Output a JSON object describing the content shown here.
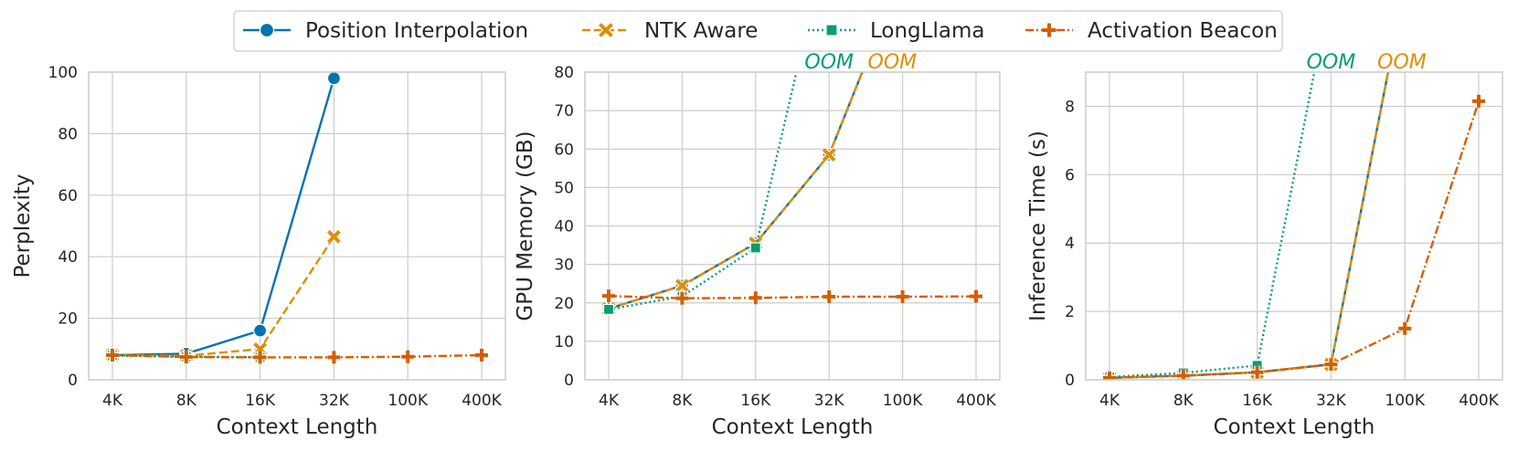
{
  "chart_data": [
    {
      "type": "line",
      "xlabel": "Context Length",
      "ylabel": "Perplexity",
      "categories": [
        "4K",
        "8K",
        "16K",
        "32K",
        "100K",
        "400K"
      ],
      "ylim": [
        0,
        100
      ],
      "yticks": [
        0,
        20,
        40,
        60,
        80,
        100
      ],
      "series": [
        {
          "name": "Position Interpolation",
          "values": [
            8.0,
            8.5,
            16.0,
            98.0,
            null,
            null
          ]
        },
        {
          "name": "NTK Aware",
          "values": [
            8.0,
            7.8,
            10.0,
            46.5,
            null,
            null
          ]
        },
        {
          "name": "LongLlama",
          "values": [
            7.9,
            7.5,
            7.3,
            null,
            null,
            null
          ]
        },
        {
          "name": "Activation Beacon",
          "values": [
            8.0,
            7.4,
            7.3,
            7.3,
            7.5,
            8.0
          ]
        }
      ]
    },
    {
      "type": "line",
      "xlabel": "Context Length",
      "ylabel": "GPU Memory (GB)",
      "categories": [
        "4K",
        "8K",
        "16K",
        "32K",
        "100K",
        "400K"
      ],
      "ylim": [
        0,
        80
      ],
      "yticks": [
        0,
        10,
        20,
        30,
        40,
        50,
        60,
        70,
        80
      ],
      "series": [
        {
          "name": "Position Interpolation",
          "values": [
            18.5,
            24.5,
            35.5,
            58.5,
            null,
            null
          ],
          "overflow_to": 3.65
        },
        {
          "name": "NTK Aware",
          "values": [
            18.5,
            24.5,
            35.5,
            58.5,
            null,
            null
          ],
          "overflow_to": 3.65
        },
        {
          "name": "LongLlama",
          "values": [
            18.3,
            21.7,
            34.3,
            null,
            null,
            null
          ],
          "overflow_to": 2.67
        },
        {
          "name": "Activation Beacon",
          "values": [
            21.8,
            21.2,
            21.3,
            21.6,
            21.6,
            21.7
          ]
        }
      ],
      "annotations": [
        {
          "text": "OOM",
          "series": "LongLlama",
          "x": 3.0
        },
        {
          "text": "OOM",
          "series": "NTK Aware",
          "x": 3.86
        }
      ]
    },
    {
      "type": "line",
      "xlabel": "Context Length",
      "ylabel": "Inference Time (s)",
      "categories": [
        "4K",
        "8K",
        "16K",
        "32K",
        "100K",
        "400K"
      ],
      "ylim": [
        0,
        9
      ],
      "yticks": [
        0,
        2,
        4,
        6,
        8
      ],
      "series": [
        {
          "name": "Position Interpolation",
          "values": [
            0.06,
            0.12,
            0.22,
            0.45,
            null,
            null
          ],
          "overflow_to": 3.87
        },
        {
          "name": "NTK Aware",
          "values": [
            0.06,
            0.12,
            0.22,
            0.45,
            null,
            null
          ],
          "overflow_to": 3.87
        },
        {
          "name": "LongLlama",
          "values": [
            0.08,
            0.2,
            0.42,
            null,
            null,
            null
          ],
          "overflow_to": 2.87
        },
        {
          "name": "Activation Beacon",
          "values": [
            0.06,
            0.12,
            0.22,
            0.45,
            1.5,
            8.15
          ]
        }
      ],
      "annotations": [
        {
          "text": "OOM",
          "series": "LongLlama",
          "x": 3.0
        },
        {
          "text": "OOM",
          "series": "NTK Aware",
          "x": 3.96
        }
      ]
    }
  ],
  "legend": {
    "position": "top-center",
    "items": [
      {
        "label": "Position Interpolation",
        "color": "#0173b2",
        "marker": "circle",
        "dash": "solid"
      },
      {
        "label": "NTK Aware",
        "color": "#de8f05",
        "marker": "x",
        "dash": "dashed"
      },
      {
        "label": "LongLlama",
        "color": "#029e73",
        "marker": "square",
        "dash": "dotted"
      },
      {
        "label": "Activation Beacon",
        "color": "#d55e00",
        "marker": "plus",
        "dash": "dashdot"
      }
    ]
  },
  "style": {
    "grid": true,
    "grid_color": "#cccccc",
    "frame_color": "#cccccc"
  }
}
